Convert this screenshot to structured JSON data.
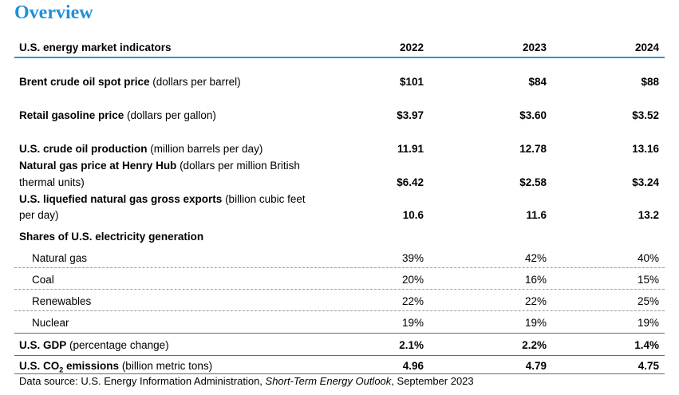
{
  "title": "Overview",
  "header": {
    "label": "U.S. energy market indicators",
    "years": [
      "2022",
      "2023",
      "2024"
    ]
  },
  "rows": [
    {
      "bold": "Brent crude oil spot price",
      "normal": " (dollars per barrel)",
      "values": [
        "$101",
        "$84",
        "$88"
      ]
    },
    {
      "bold": "Retail gasoline price",
      "normal": " (dollars per gallon)",
      "values": [
        "$3.97",
        "$3.60",
        "$3.52"
      ]
    },
    {
      "bold": "U.S. crude oil production",
      "normal": " (million barrels per day)",
      "values": [
        "11.91",
        "12.78",
        "13.16"
      ]
    },
    {
      "bold": "Natural gas price at Henry Hub",
      "normal": " (dollars per million British",
      "line2": "thermal units)",
      "values": [
        "$6.42",
        "$2.58",
        "$3.24"
      ]
    },
    {
      "bold": "U.S. liquefied natural gas gross exports",
      "normal": " (billion cubic feet",
      "line2": "per day)",
      "values": [
        "10.6",
        "11.6",
        "13.2"
      ]
    }
  ],
  "shares": {
    "heading": "Shares of U.S. electricity generation",
    "items": [
      {
        "label": "Natural gas",
        "values": [
          "39%",
          "42%",
          "40%"
        ]
      },
      {
        "label": "Coal",
        "values": [
          "20%",
          "16%",
          "15%"
        ]
      },
      {
        "label": "Renewables",
        "values": [
          "22%",
          "22%",
          "25%"
        ]
      },
      {
        "label": "Nuclear",
        "values": [
          "19%",
          "19%",
          "19%"
        ]
      }
    ]
  },
  "gdp": {
    "bold": "U.S. GDP",
    "normal": " (percentage change)",
    "values": [
      "2.1%",
      "2.2%",
      "1.4%"
    ]
  },
  "co2": {
    "bold_a": "U.S. CO",
    "sub": "2",
    "bold_b": " emissions",
    "normal": " (billion metric tons)",
    "values": [
      "4.96",
      "4.79",
      "4.75"
    ]
  },
  "footer": {
    "prefix": "Data source: U.S. Energy Information Administration, ",
    "italic": "Short-Term Energy Outlook",
    "suffix": ", September 2023"
  }
}
